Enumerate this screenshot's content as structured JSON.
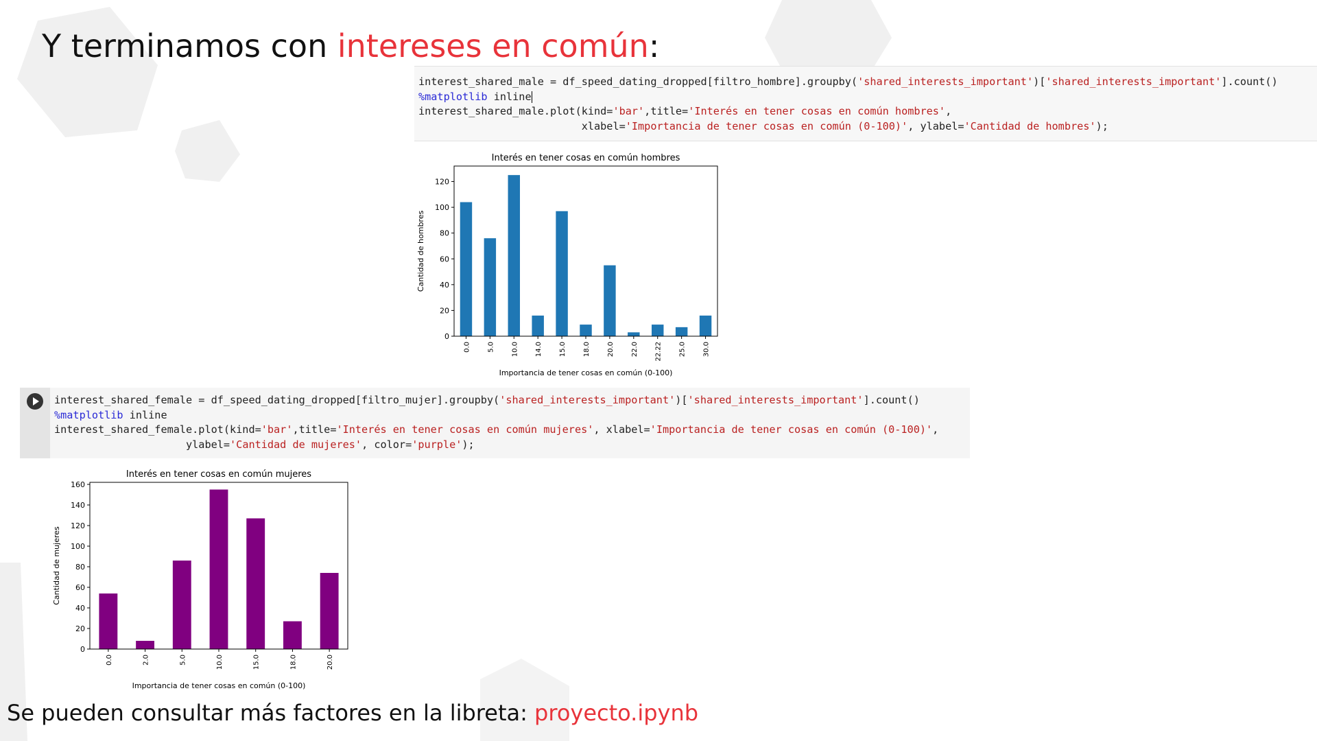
{
  "slide": {
    "title_prefix": "Y terminamos con ",
    "title_highlight": "intereses en común",
    "title_suffix": ":",
    "footer_prefix": "Se pueden consultar más factores en la libreta: ",
    "footer_link": "proyecto.ipynb",
    "accent_color": "#e8333a"
  },
  "cell_male": {
    "line1_a": "interest_shared_male = df_speed_dating_dropped[filtro_hombre].groupby(",
    "line1_s1": "'shared_interests_important'",
    "line1_b": ")[",
    "line1_s2": "'shared_interests_important'",
    "line1_c": "].count()",
    "line2_magic": "%matplotlib",
    "line2_rest": " inline",
    "line3_a": "interest_shared_male.plot(kind=",
    "line3_s1": "'bar'",
    "line3_b": ",title=",
    "line3_s2": "'Interés en tener cosas en común hombres'",
    "line3_c": ",",
    "line4_a": "                          xlabel=",
    "line4_s1": "'Importancia de tener cosas en común (0-100)'",
    "line4_b": ", ylabel=",
    "line4_s2": "'Cantidad de hombres'",
    "line4_c": ");"
  },
  "cell_female": {
    "run_icon": "play-circle-icon",
    "line1_a": "interest_shared_female = df_speed_dating_dropped[filtro_mujer].groupby(",
    "line1_s1": "'shared_interests_important'",
    "line1_b": ")[",
    "line1_s2": "'shared_interests_important'",
    "line1_c": "].count()",
    "line2_magic": "%matplotlib",
    "line2_rest": " inline",
    "line3_a": "interest_shared_female.plot(kind=",
    "line3_s1": "'bar'",
    "line3_b": ",title=",
    "line3_s2": "'Interés en tener cosas en común mujeres'",
    "line3_c": ", xlabel=",
    "line3_s3": "'Importancia de tener cosas en común (0-100)'",
    "line3_d": ",",
    "line4_a": "                     ylabel=",
    "line4_s1": "'Cantidad de mujeres'",
    "line4_b": ", color=",
    "line4_s2": "'purple'",
    "line4_c": ");"
  },
  "chart_data": [
    {
      "type": "bar",
      "title": "Interés en tener cosas en común hombres",
      "xlabel": "Importancia de tener cosas en común (0-100)",
      "ylabel": "Cantidad de hombres",
      "categories": [
        "0.0",
        "5.0",
        "10.0",
        "14.0",
        "15.0",
        "18.0",
        "20.0",
        "22.0",
        "22.22",
        "25.0",
        "30.0"
      ],
      "values": [
        104,
        76,
        125,
        16,
        97,
        9,
        55,
        3,
        9,
        7,
        16
      ],
      "ylim": [
        0,
        132
      ],
      "yticks": [
        0,
        20,
        40,
        60,
        80,
        100,
        120
      ],
      "color": "#1f77b4",
      "grid": false
    },
    {
      "type": "bar",
      "title": "Interés en tener cosas en común mujeres",
      "xlabel": "Importancia de tener cosas en común (0-100)",
      "ylabel": "Cantidad de mujeres",
      "categories": [
        "0.0",
        "2.0",
        "5.0",
        "10.0",
        "15.0",
        "18.0",
        "20.0"
      ],
      "values": [
        54,
        8,
        86,
        155,
        127,
        27,
        74
      ],
      "ylim": [
        0,
        162
      ],
      "yticks": [
        0,
        20,
        40,
        60,
        80,
        100,
        120,
        140,
        160
      ],
      "color": "#800080",
      "grid": false
    }
  ]
}
